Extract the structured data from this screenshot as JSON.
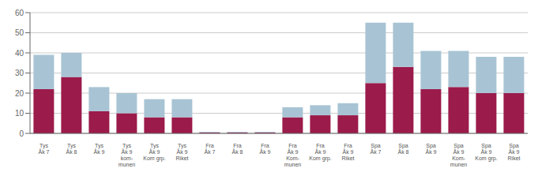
{
  "chart_data": {
    "type": "bar",
    "categories": [
      "Tys\nÅk 7",
      "Tys\nÅk 8",
      "Tys\nÅk 9",
      "Tys\nÅk 9\nkom-\nmunen",
      "Tys\nÅk 9\nKom grp.",
      "Tys\nÅk 9\nRiket",
      "Fra\nÅk 7",
      "Fra\nÅk 8",
      "Fra\nÅk 9",
      "Fra\nÅk 9\nKom-\nmunen",
      "Fra\nÅk 9\nKom grp.",
      "Fra\nÅk 9\nRiket",
      "Spa\nÅk 7",
      "Spa\nÅk 8",
      "Spa\nÅk 9",
      "Spa\nÅk 9\nKom-\nmunen",
      "Spa\nÅk 9\nKom grp.",
      "Spa\nÅk 9\nRiket"
    ],
    "series": [
      {
        "color": "#9B1B4B",
        "values": [
          22,
          28,
          11,
          10,
          8,
          8,
          0.5,
          0.5,
          0.5,
          8,
          9,
          9,
          25,
          33,
          22,
          23,
          20,
          20
        ]
      },
      {
        "color": "#A8C4D4",
        "values": [
          17,
          12,
          12,
          10,
          9,
          9,
          0.3,
          0.3,
          0.3,
          5,
          5,
          6,
          30,
          22,
          19,
          18,
          18,
          18
        ]
      }
    ],
    "stacked": true,
    "ylim": [
      0,
      60
    ],
    "yticks": [
      0,
      10,
      20,
      30,
      40,
      50,
      60
    ],
    "grid": true
  }
}
